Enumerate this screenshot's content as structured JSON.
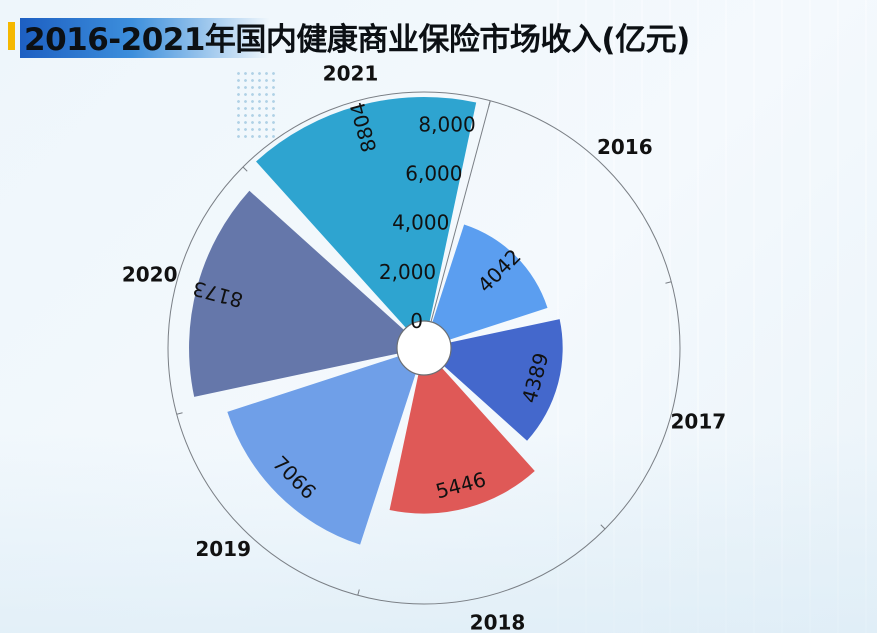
{
  "title": "2016-2021年国内健康商业保险市场收入(亿元)",
  "chart_data": {
    "type": "polar-bar",
    "title": "2016-2021年国内健康商业保险市场收入(亿元)",
    "categories": [
      "2016",
      "2017",
      "2018",
      "2019",
      "2020",
      "2021"
    ],
    "values": [
      4042,
      4389,
      5446,
      7066,
      8173,
      8804
    ],
    "colors": [
      "#5b9ef0",
      "#4468cc",
      "#df5957",
      "#6f9fe8",
      "#6577aa",
      "#2ea4d0"
    ],
    "radial_axis": {
      "range": [
        0,
        9000
      ],
      "ticks": [
        "0",
        "2,000",
        "4,000",
        "6,000",
        "8,000"
      ],
      "tick_values": [
        0,
        2000,
        4000,
        6000,
        8000
      ]
    },
    "data_labels": [
      "4042",
      "4389",
      "5446",
      "7066",
      "8173",
      "8804"
    ],
    "grid": false,
    "legend": "none"
  }
}
